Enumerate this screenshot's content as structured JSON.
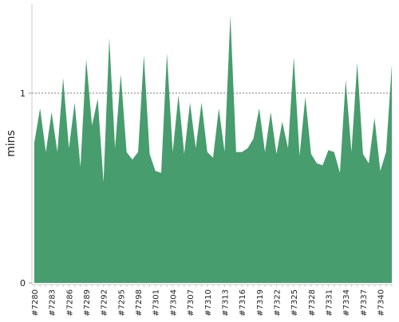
{
  "chart_data": {
    "type": "area",
    "ylabel": "mins",
    "color": "#479d6d",
    "categories": [
      "#7280",
      null,
      null,
      "#7283",
      null,
      null,
      "#7286",
      null,
      null,
      "#7289",
      null,
      null,
      "#7292",
      null,
      null,
      "#7295",
      null,
      null,
      "#7298",
      null,
      null,
      "#7301",
      null,
      null,
      "#7304",
      null,
      null,
      "#7307",
      null,
      null,
      "#7310",
      null,
      null,
      "#7313",
      null,
      null,
      "#7316",
      null,
      null,
      "#7319",
      null,
      null,
      "#7322",
      null,
      null,
      "#7325",
      null,
      null,
      "#7328",
      null,
      null,
      "#7331",
      null,
      null,
      "#7334",
      null,
      null,
      "#7337",
      null,
      null,
      "#7340",
      null,
      null
    ],
    "values": [
      0.74,
      0.92,
      0.69,
      0.9,
      0.69,
      1.08,
      0.71,
      0.95,
      0.61,
      1.18,
      0.83,
      0.97,
      0.53,
      1.29,
      0.71,
      1.1,
      0.69,
      0.65,
      0.69,
      1.2,
      0.68,
      0.59,
      0.58,
      1.21,
      0.69,
      0.99,
      0.68,
      0.95,
      0.71,
      0.95,
      0.69,
      0.66,
      0.92,
      0.69,
      1.41,
      0.69,
      0.69,
      0.71,
      0.76,
      0.92,
      0.69,
      0.9,
      0.68,
      0.85,
      0.71,
      1.19,
      0.67,
      0.98,
      0.68,
      0.63,
      0.62,
      0.7,
      0.69,
      0.58,
      1.07,
      0.69,
      1.16,
      0.68,
      0.63,
      0.87,
      0.59,
      0.69,
      1.15
    ],
    "ylim": [
      0,
      1.47
    ],
    "yticks": [
      0,
      1
    ],
    "grid": true
  }
}
